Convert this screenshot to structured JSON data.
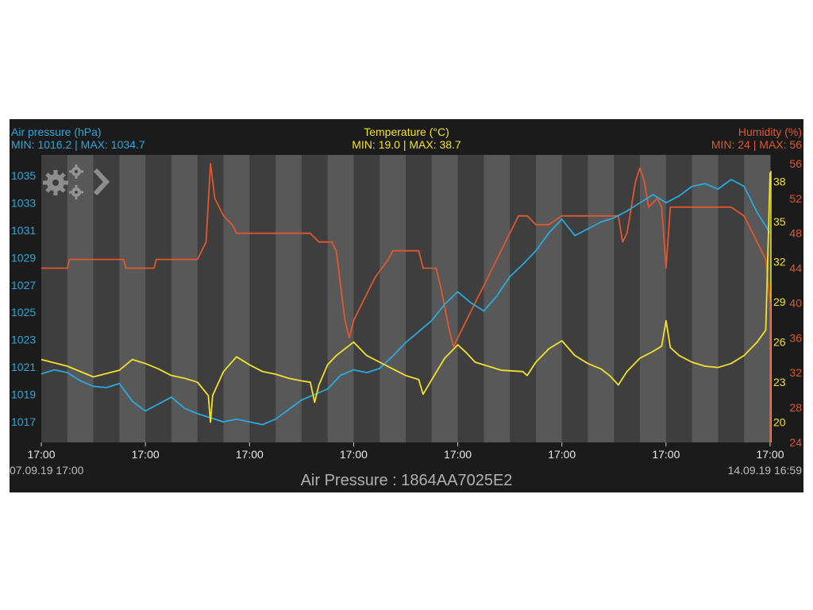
{
  "header": {
    "pressure_label": "Air pressure (hPa)",
    "pressure_minmax": "MIN: 1016.2 | MAX: 1034.7",
    "temperature_label": "Temperature (°C)",
    "temperature_minmax": "MIN: 19.0 | MAX: 38.7",
    "humidity_label": "Humidity (%)",
    "humidity_minmax": "MIN: 24 | MAX: 56"
  },
  "footer": {
    "start": "07.09.19  17:00",
    "end": "14.09.19  16:59",
    "title": "Air Pressure : 1864AA7025E2"
  },
  "colors": {
    "pressure": "#29a9df",
    "temperature": "#f0e22a",
    "humidity": "#e0572f"
  },
  "icons": {
    "settings": "gears-icon",
    "next": "chevron-right-icon"
  },
  "chart_data": {
    "type": "line",
    "x_tick_labels": [
      "17:00",
      "17:00",
      "17:00",
      "17:00",
      "17:00",
      "17:00",
      "17:00",
      "17:00"
    ],
    "x_unit": "hours since 07.09.19 17:00",
    "xlim": [
      0,
      168
    ],
    "axes": {
      "pressure": {
        "ticks": [
          "1017",
          "1019",
          "1021",
          "1023",
          "1025",
          "1027",
          "1029",
          "1031",
          "1033",
          "1035"
        ],
        "ylim": [
          1015.5,
          1036.5
        ]
      },
      "temperature": {
        "ticks": [
          "20",
          "23",
          "26",
          "29",
          "32",
          "35",
          "38"
        ],
        "ylim": [
          18.5,
          40.0
        ]
      },
      "humidity": {
        "ticks": [
          "24",
          "28",
          "32",
          "36",
          "40",
          "44",
          "48",
          "52",
          "56"
        ],
        "ylim": [
          24,
          57
        ]
      }
    },
    "series": [
      {
        "name": "Air pressure (hPa)",
        "axis": "pressure",
        "points": [
          [
            0,
            1020.5
          ],
          [
            3,
            1020.8
          ],
          [
            6,
            1020.6
          ],
          [
            9,
            1020.0
          ],
          [
            12,
            1019.6
          ],
          [
            15,
            1019.5
          ],
          [
            18,
            1019.8
          ],
          [
            21,
            1018.5
          ],
          [
            24,
            1017.8
          ],
          [
            27,
            1018.3
          ],
          [
            30,
            1018.8
          ],
          [
            33,
            1018.0
          ],
          [
            36,
            1017.6
          ],
          [
            39,
            1017.3
          ],
          [
            42,
            1017.0
          ],
          [
            45,
            1017.2
          ],
          [
            48,
            1017.0
          ],
          [
            51,
            1016.8
          ],
          [
            54,
            1017.2
          ],
          [
            57,
            1017.9
          ],
          [
            60,
            1018.6
          ],
          [
            63,
            1019.0
          ],
          [
            66,
            1019.4
          ],
          [
            69,
            1020.4
          ],
          [
            72,
            1020.8
          ],
          [
            75,
            1020.6
          ],
          [
            78,
            1020.9
          ],
          [
            81,
            1021.8
          ],
          [
            84,
            1022.8
          ],
          [
            87,
            1023.6
          ],
          [
            90,
            1024.4
          ],
          [
            93,
            1025.6
          ],
          [
            96,
            1026.5
          ],
          [
            99,
            1025.7
          ],
          [
            102,
            1025.1
          ],
          [
            105,
            1026.2
          ],
          [
            108,
            1027.6
          ],
          [
            111,
            1028.5
          ],
          [
            114,
            1029.5
          ],
          [
            117,
            1030.8
          ],
          [
            120,
            1031.8
          ],
          [
            123,
            1030.6
          ],
          [
            126,
            1031.1
          ],
          [
            129,
            1031.6
          ],
          [
            132,
            1031.9
          ],
          [
            135,
            1032.4
          ],
          [
            138,
            1033.0
          ],
          [
            141,
            1033.6
          ],
          [
            144,
            1033.0
          ],
          [
            147,
            1033.5
          ],
          [
            150,
            1034.2
          ],
          [
            153,
            1034.4
          ],
          [
            156,
            1034.0
          ],
          [
            159,
            1034.7
          ],
          [
            162,
            1034.2
          ],
          [
            165,
            1032.3
          ],
          [
            168,
            1030.8
          ]
        ]
      },
      {
        "name": "Temperature (°C)",
        "axis": "temperature",
        "points": [
          [
            0,
            24.7
          ],
          [
            6,
            24.2
          ],
          [
            12,
            23.4
          ],
          [
            18,
            23.9
          ],
          [
            21,
            24.7
          ],
          [
            24,
            24.4
          ],
          [
            27,
            24.0
          ],
          [
            30,
            23.5
          ],
          [
            33,
            23.3
          ],
          [
            36,
            23.0
          ],
          [
            38.5,
            22.0
          ],
          [
            39,
            20.0
          ],
          [
            39.5,
            22.0
          ],
          [
            42,
            23.8
          ],
          [
            45,
            24.9
          ],
          [
            48,
            24.3
          ],
          [
            51,
            23.8
          ],
          [
            54,
            23.6
          ],
          [
            57,
            23.3
          ],
          [
            60,
            23.1
          ],
          [
            62,
            23.0
          ],
          [
            63,
            21.5
          ],
          [
            64,
            22.8
          ],
          [
            66,
            24.3
          ],
          [
            68,
            25.0
          ],
          [
            72,
            26.0
          ],
          [
            75,
            25.0
          ],
          [
            78,
            24.5
          ],
          [
            81,
            24.0
          ],
          [
            84,
            23.5
          ],
          [
            87,
            23.2
          ],
          [
            88,
            22.1
          ],
          [
            90,
            23.2
          ],
          [
            93,
            24.8
          ],
          [
            96,
            25.8
          ],
          [
            98,
            25.2
          ],
          [
            100,
            24.5
          ],
          [
            103,
            24.2
          ],
          [
            106,
            23.9
          ],
          [
            111,
            23.8
          ],
          [
            112,
            23.5
          ],
          [
            114,
            24.5
          ],
          [
            117,
            25.5
          ],
          [
            120,
            26.1
          ],
          [
            123,
            25.0
          ],
          [
            126,
            24.4
          ],
          [
            129,
            24.0
          ],
          [
            131,
            23.5
          ],
          [
            133,
            22.8
          ],
          [
            135,
            23.8
          ],
          [
            138,
            24.8
          ],
          [
            141,
            25.3
          ],
          [
            143,
            25.7
          ],
          [
            144,
            27.6
          ],
          [
            145,
            25.6
          ],
          [
            147,
            25.0
          ],
          [
            150,
            24.5
          ],
          [
            153,
            24.2
          ],
          [
            156,
            24.1
          ],
          [
            159,
            24.4
          ],
          [
            162,
            25.0
          ],
          [
            165,
            26.0
          ],
          [
            167,
            26.9
          ],
          [
            168,
            38.7
          ]
        ]
      },
      {
        "name": "Humidity (%)",
        "axis": "humidity",
        "points": [
          [
            0,
            44
          ],
          [
            6,
            44
          ],
          [
            6.5,
            45
          ],
          [
            19,
            45
          ],
          [
            19.5,
            44
          ],
          [
            26,
            44
          ],
          [
            26.5,
            45
          ],
          [
            36,
            45
          ],
          [
            38,
            47
          ],
          [
            39,
            56
          ],
          [
            40,
            52
          ],
          [
            42,
            50
          ],
          [
            44,
            49
          ],
          [
            45,
            48
          ],
          [
            48,
            48
          ],
          [
            52,
            48
          ],
          [
            57,
            48
          ],
          [
            60,
            48
          ],
          [
            62,
            48
          ],
          [
            64,
            47
          ],
          [
            67,
            47
          ],
          [
            68,
            46
          ],
          [
            69,
            42
          ],
          [
            70,
            38
          ],
          [
            71,
            36
          ],
          [
            72,
            38
          ],
          [
            75,
            41
          ],
          [
            77,
            43
          ],
          [
            80,
            45
          ],
          [
            81,
            46
          ],
          [
            84,
            46
          ],
          [
            87,
            46
          ],
          [
            88,
            44
          ],
          [
            91,
            44
          ],
          [
            92,
            42
          ],
          [
            94,
            37
          ],
          [
            95,
            35
          ],
          [
            96,
            36
          ],
          [
            98,
            38
          ],
          [
            100,
            40
          ],
          [
            102,
            42
          ],
          [
            104,
            44
          ],
          [
            106,
            46
          ],
          [
            108,
            48
          ],
          [
            110,
            50
          ],
          [
            112,
            50
          ],
          [
            114,
            49
          ],
          [
            117,
            49
          ],
          [
            120,
            50
          ],
          [
            123,
            50
          ],
          [
            125,
            50
          ],
          [
            128,
            50
          ],
          [
            131,
            50
          ],
          [
            133,
            50
          ],
          [
            134,
            47
          ],
          [
            135,
            48
          ],
          [
            137,
            54
          ],
          [
            138,
            55.5
          ],
          [
            139,
            54
          ],
          [
            140,
            51
          ],
          [
            142,
            52
          ],
          [
            143,
            51
          ],
          [
            144,
            44
          ],
          [
            145,
            51
          ],
          [
            147,
            51
          ],
          [
            150,
            51
          ],
          [
            153,
            51
          ],
          [
            156,
            51
          ],
          [
            159,
            51
          ],
          [
            162,
            50
          ],
          [
            165,
            47
          ],
          [
            167,
            45
          ],
          [
            168,
            40
          ],
          [
            168,
            24
          ]
        ]
      }
    ],
    "grid": "alternating vertical bands",
    "legend": "header"
  }
}
